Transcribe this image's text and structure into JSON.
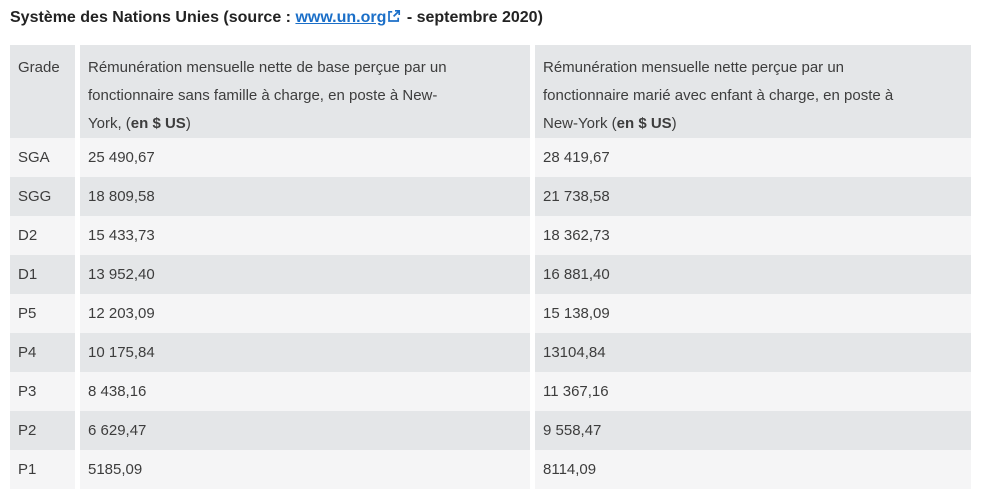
{
  "title": {
    "prefix": "Système des Nations Unies (source : ",
    "link_text": "www.un.org",
    "suffix": " - septembre 2020)"
  },
  "icons": {
    "external_link": "external-link-icon"
  },
  "table": {
    "columns": [
      {
        "text": "Grade"
      },
      {
        "text": "Rémunération mensuelle nette de base perçue par un fonctionnaire sans famille à charge, en poste à New-York, (",
        "bold": "en $ US",
        "close": ")"
      },
      {
        "text": "Rémunération mensuelle nette perçue par un fonctionnaire marié avec enfant à charge, en poste à New-York (",
        "bold": "en $ US",
        "close": ")"
      }
    ],
    "rows": [
      {
        "grade": "SGA",
        "single": "25 490,67",
        "married": "28 419,67"
      },
      {
        "grade": "SGG",
        "single": "18 809,58",
        "married": "21 738,58"
      },
      {
        "grade": "D2",
        "single": "15 433,73",
        "married": "18 362,73"
      },
      {
        "grade": "D1",
        "single": "13 952,40",
        "married": "16 881,40"
      },
      {
        "grade": "P5",
        "single": "12 203,09",
        "married": "15 138,09"
      },
      {
        "grade": "P4",
        "single": "10 175,84",
        "married": "13104,84"
      },
      {
        "grade": "P3",
        "single": "8 438,16",
        "married": "11 367,16"
      },
      {
        "grade": "P2",
        "single": "6 629,47",
        "married": "9 558,47"
      },
      {
        "grade": "P1",
        "single": "5185,09",
        "married": "8114,09"
      }
    ]
  },
  "colors": {
    "link_blue": "#1b6fc8",
    "header_bg": "#e4e6e8",
    "row_alt_bg": "#e4e6e8",
    "row_bg": "#f5f5f6",
    "text": "#3d3d3d",
    "title_text": "#232323"
  }
}
